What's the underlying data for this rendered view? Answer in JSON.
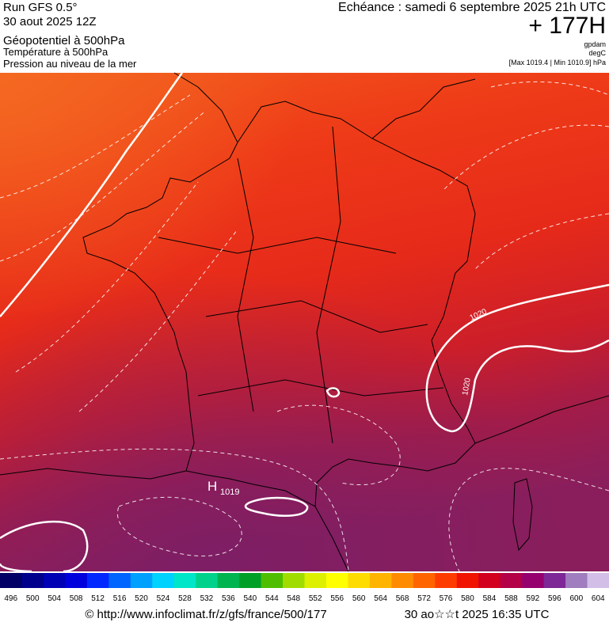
{
  "header": {
    "run": "Run GFS 0.5°",
    "date": "30 aout 2025 12Z",
    "layers": [
      "Géopotentiel à 500hPa",
      "Température à 500hPa",
      "Pression au niveau de la mer"
    ],
    "valid": "Echéance : samedi 6 septembre 2025 21h UTC",
    "lead": "+ 177H",
    "units": [
      "gpdam",
      "degC"
    ],
    "pressure_range": "[Max 1019.4 | Min 1010.9] hPa"
  },
  "map": {
    "labels": [
      "1020",
      "1020",
      "H",
      "1019"
    ]
  },
  "legend": {
    "items": [
      {
        "label": 496,
        "color": "#000066"
      },
      {
        "label": 500,
        "color": "#00008c"
      },
      {
        "label": 504,
        "color": "#0000b4"
      },
      {
        "label": 508,
        "color": "#0000dc"
      },
      {
        "label": 512,
        "color": "#0028ff"
      },
      {
        "label": 516,
        "color": "#0064ff"
      },
      {
        "label": 520,
        "color": "#00a0ff"
      },
      {
        "label": 524,
        "color": "#00d2ff"
      },
      {
        "label": 528,
        "color": "#00e6c8"
      },
      {
        "label": 532,
        "color": "#00d28c"
      },
      {
        "label": 536,
        "color": "#00b450"
      },
      {
        "label": 540,
        "color": "#00a028"
      },
      {
        "label": 544,
        "color": "#50be00"
      },
      {
        "label": 548,
        "color": "#a0dc00"
      },
      {
        "label": 552,
        "color": "#dcf000"
      },
      {
        "label": 556,
        "color": "#ffff00"
      },
      {
        "label": 560,
        "color": "#ffdc00"
      },
      {
        "label": 564,
        "color": "#ffb400"
      },
      {
        "label": 568,
        "color": "#ff8c00"
      },
      {
        "label": 572,
        "color": "#ff6400"
      },
      {
        "label": 576,
        "color": "#ff3c00"
      },
      {
        "label": 580,
        "color": "#f01400"
      },
      {
        "label": 584,
        "color": "#d2001e"
      },
      {
        "label": 588,
        "color": "#b40046"
      },
      {
        "label": 592,
        "color": "#96006e"
      },
      {
        "label": 596,
        "color": "#7d2896"
      },
      {
        "label": 600,
        "color": "#a07dbe"
      },
      {
        "label": 604,
        "color": "#d2bee6"
      }
    ]
  },
  "footer": {
    "source": "© http://www.infoclimat.fr/z/gfs/france/500/177",
    "generated": "30 ao☆☆t 2025 16:35 UTC"
  }
}
